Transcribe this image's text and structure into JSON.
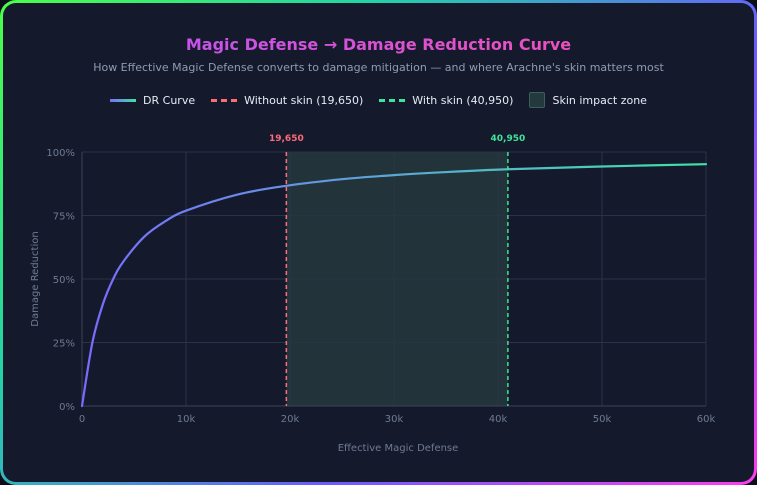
{
  "chart_data": {
    "type": "line",
    "title": "Magic Defense → Damage Reduction Curve",
    "subtitle": "How Effective Magic Defense converts to damage mitigation — and where Arachne's skin matters most",
    "xlabel": "Effective Magic Defense",
    "ylabel": "Damage Reduction",
    "xlim": [
      0,
      60000
    ],
    "ylim": [
      0,
      1
    ],
    "x_ticks": [
      0,
      10000,
      20000,
      30000,
      40000,
      50000,
      60000
    ],
    "x_tick_labels": [
      "0",
      "10k",
      "20k",
      "30k",
      "40k",
      "50k",
      "60k"
    ],
    "y_ticks": [
      0,
      0.25,
      0.5,
      0.75,
      1
    ],
    "y_tick_labels": [
      "0%",
      "25%",
      "50%",
      "75%",
      "100%"
    ],
    "grid": true,
    "legend_position": "top-center",
    "series": [
      {
        "name": "DR Curve",
        "x": [
          0,
          1000,
          2000,
          3000,
          4000,
          6000,
          8000,
          10000,
          15000,
          19650,
          25000,
          30000,
          35000,
          40950,
          50000,
          60000
        ],
        "y": [
          0,
          0.25,
          0.4,
          0.5,
          0.57,
          0.667,
          0.727,
          0.769,
          0.833,
          0.867,
          0.893,
          0.909,
          0.921,
          0.932,
          0.943,
          0.952
        ],
        "color_start": "#7a6bff",
        "color_end": "#3fe3a8"
      }
    ],
    "markers": [
      {
        "name": "Without skin (19,650)",
        "x": 19650,
        "label": "19,650",
        "color": "#ff6b78"
      },
      {
        "name": "With skin (40,950)",
        "x": 40950,
        "label": "40,950",
        "color": "#3fe39a"
      }
    ],
    "zone": {
      "name": "Skin impact zone",
      "x_start": 19650,
      "x_end": 40950,
      "color": "#24393d"
    }
  }
}
